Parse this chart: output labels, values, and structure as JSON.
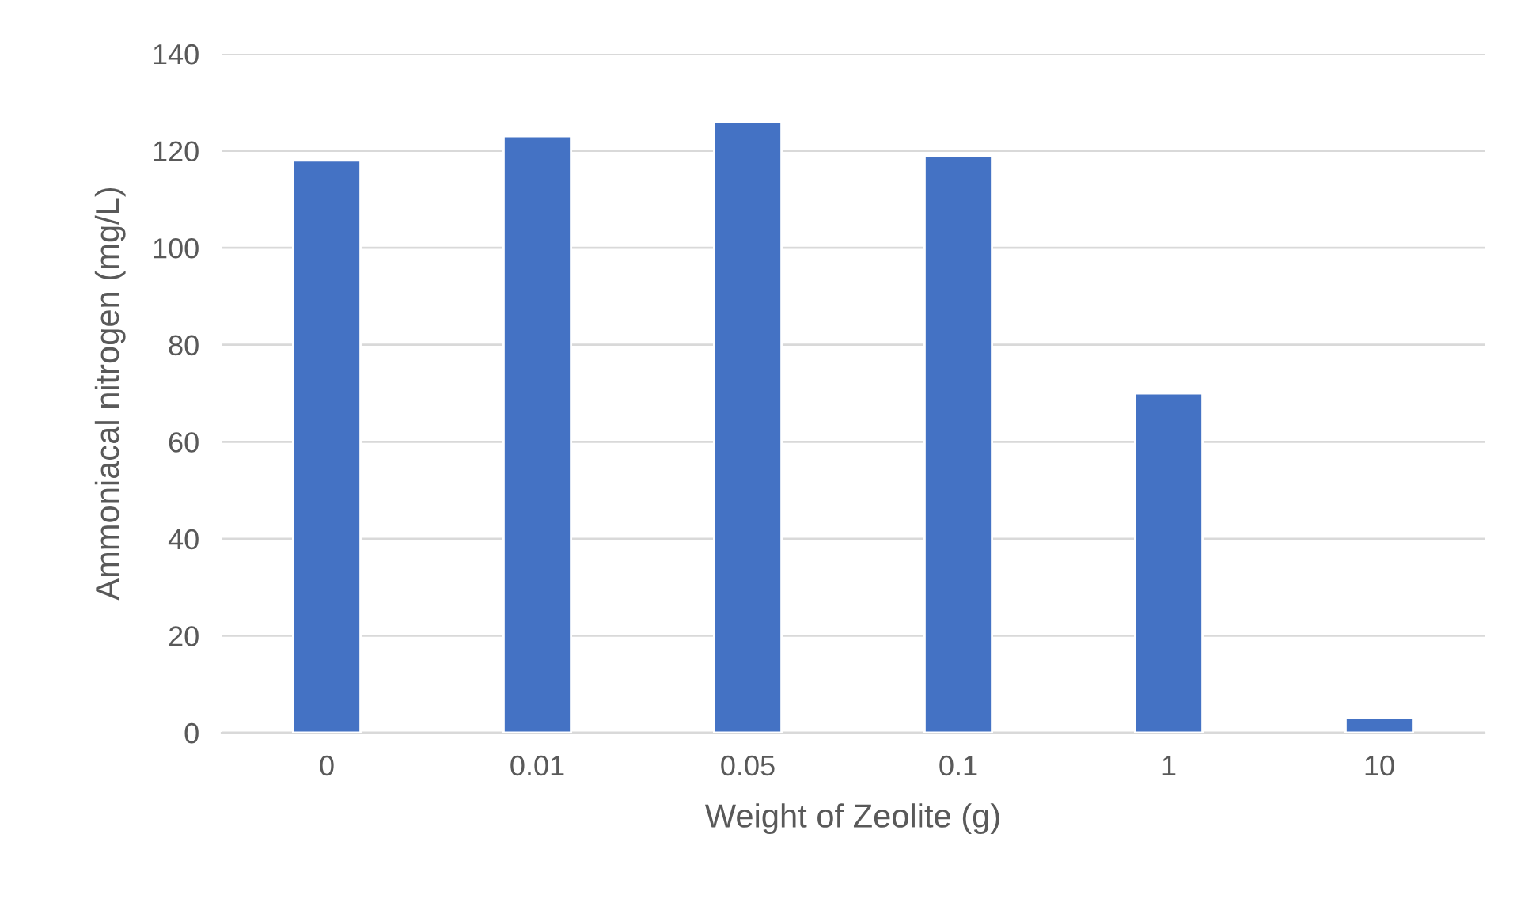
{
  "chart_data": {
    "type": "bar",
    "xlabel": "Weight of Zeolite (g)",
    "ylabel": "Ammoniacal nitrogen (mg/L)",
    "categories": [
      "0",
      "0.01",
      "0.05",
      "0.1",
      "1",
      "10"
    ],
    "values": [
      118,
      123,
      126,
      119,
      70,
      3
    ],
    "color": "#4472c4",
    "ylim": [
      0,
      140
    ],
    "yticks": [
      0,
      20,
      40,
      60,
      80,
      100,
      120,
      140
    ],
    "grid": "y"
  }
}
